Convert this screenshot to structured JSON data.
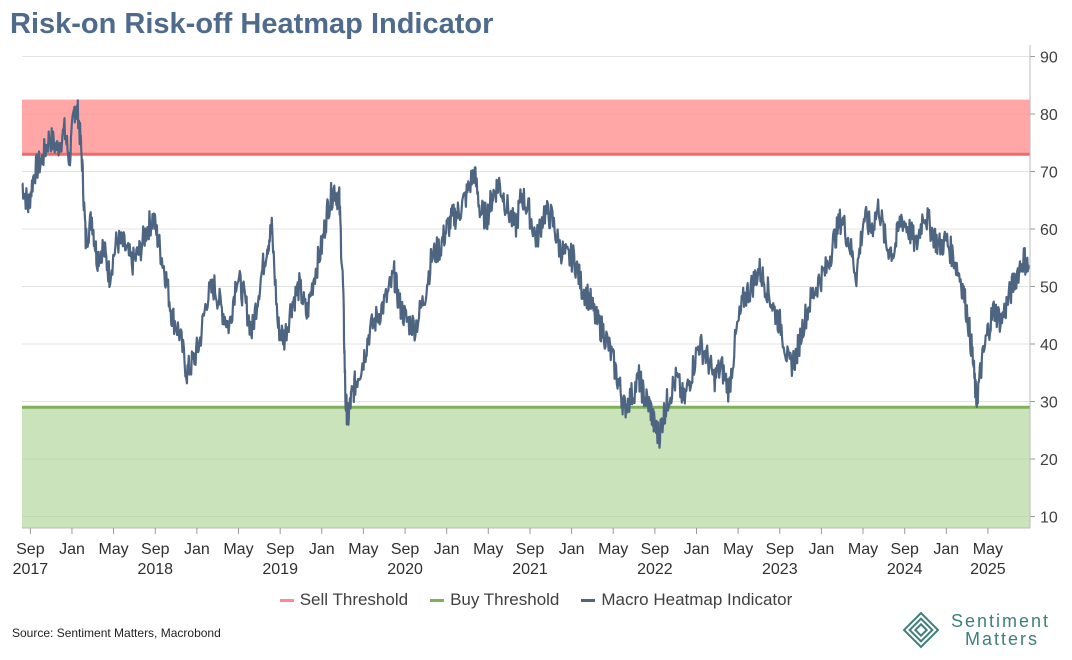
{
  "chart_data": {
    "type": "line",
    "title": "Risk-on Risk-off Heatmap Indicator",
    "ylim": [
      8,
      92
    ],
    "yticks": [
      10,
      20,
      30,
      40,
      50,
      60,
      70,
      80,
      90
    ],
    "xlim": [
      2017.6,
      2025.67
    ],
    "xticks": [
      {
        "t": 2017.667,
        "label": "Sep",
        "year": "2017"
      },
      {
        "t": 2018.0,
        "label": "Jan"
      },
      {
        "t": 2018.333,
        "label": "May"
      },
      {
        "t": 2018.667,
        "label": "Sep",
        "year": "2018"
      },
      {
        "t": 2019.0,
        "label": "Jan"
      },
      {
        "t": 2019.333,
        "label": "May"
      },
      {
        "t": 2019.667,
        "label": "Sep",
        "year": "2019"
      },
      {
        "t": 2020.0,
        "label": "Jan"
      },
      {
        "t": 2020.333,
        "label": "May"
      },
      {
        "t": 2020.667,
        "label": "Sep",
        "year": "2020"
      },
      {
        "t": 2021.0,
        "label": "Jan"
      },
      {
        "t": 2021.333,
        "label": "May"
      },
      {
        "t": 2021.667,
        "label": "Sep",
        "year": "2021"
      },
      {
        "t": 2022.0,
        "label": "Jan"
      },
      {
        "t": 2022.333,
        "label": "May"
      },
      {
        "t": 2022.667,
        "label": "Sep",
        "year": "2022"
      },
      {
        "t": 2023.0,
        "label": "Jan"
      },
      {
        "t": 2023.333,
        "label": "May"
      },
      {
        "t": 2023.667,
        "label": "Sep",
        "year": "2023"
      },
      {
        "t": 2024.0,
        "label": "Jan"
      },
      {
        "t": 2024.333,
        "label": "May"
      },
      {
        "t": 2024.667,
        "label": "Sep",
        "year": "2024"
      },
      {
        "t": 2025.0,
        "label": "Jan"
      },
      {
        "t": 2025.333,
        "label": "May",
        "year": "2025"
      }
    ],
    "series": [
      {
        "name": "Sell Threshold",
        "kind": "band",
        "range": [
          73,
          82.5
        ],
        "color": "#ff8a8a"
      },
      {
        "name": "Buy Threshold",
        "kind": "band",
        "range": [
          8,
          29
        ],
        "color": "#a8d08d"
      },
      {
        "name": "Macro Heatmap Indicator",
        "kind": "line",
        "color": "#4e6582",
        "points": [
          [
            2017.6,
            68
          ],
          [
            2017.65,
            64
          ],
          [
            2017.7,
            70
          ],
          [
            2017.76,
            72
          ],
          [
            2017.82,
            76
          ],
          [
            2017.88,
            74
          ],
          [
            2017.94,
            77
          ],
          [
            2017.98,
            72
          ],
          [
            2018.02,
            81
          ],
          [
            2018.05,
            80
          ],
          [
            2018.08,
            72
          ],
          [
            2018.11,
            58
          ],
          [
            2018.16,
            62
          ],
          [
            2018.2,
            55
          ],
          [
            2018.25,
            57
          ],
          [
            2018.3,
            52
          ],
          [
            2018.36,
            58
          ],
          [
            2018.42,
            57
          ],
          [
            2018.48,
            54
          ],
          [
            2018.54,
            56
          ],
          [
            2018.6,
            60
          ],
          [
            2018.65,
            62
          ],
          [
            2018.7,
            57
          ],
          [
            2018.75,
            52
          ],
          [
            2018.8,
            45
          ],
          [
            2018.86,
            42
          ],
          [
            2018.92,
            35
          ],
          [
            2018.97,
            37
          ],
          [
            2019.02,
            40
          ],
          [
            2019.08,
            48
          ],
          [
            2019.14,
            50
          ],
          [
            2019.2,
            46
          ],
          [
            2019.26,
            43
          ],
          [
            2019.32,
            52
          ],
          [
            2019.38,
            48
          ],
          [
            2019.44,
            42
          ],
          [
            2019.5,
            50
          ],
          [
            2019.56,
            57
          ],
          [
            2019.6,
            60
          ],
          [
            2019.65,
            43
          ],
          [
            2019.7,
            41
          ],
          [
            2019.76,
            47
          ],
          [
            2019.82,
            50
          ],
          [
            2019.88,
            45
          ],
          [
            2019.94,
            52
          ],
          [
            2020.0,
            57
          ],
          [
            2020.05,
            64
          ],
          [
            2020.1,
            67
          ],
          [
            2020.14,
            65
          ],
          [
            2020.17,
            50
          ],
          [
            2020.19,
            30
          ],
          [
            2020.21,
            27
          ],
          [
            2020.24,
            31
          ],
          [
            2020.28,
            34
          ],
          [
            2020.33,
            37
          ],
          [
            2020.38,
            42
          ],
          [
            2020.45,
            45
          ],
          [
            2020.52,
            48
          ],
          [
            2020.58,
            52
          ],
          [
            2020.62,
            47
          ],
          [
            2020.68,
            44
          ],
          [
            2020.75,
            43
          ],
          [
            2020.82,
            48
          ],
          [
            2020.88,
            55
          ],
          [
            2020.95,
            57
          ],
          [
            2021.0,
            60
          ],
          [
            2021.05,
            62
          ],
          [
            2021.1,
            63
          ],
          [
            2021.16,
            66
          ],
          [
            2021.22,
            70
          ],
          [
            2021.27,
            63
          ],
          [
            2021.32,
            62
          ],
          [
            2021.37,
            66
          ],
          [
            2021.42,
            68
          ],
          [
            2021.48,
            64
          ],
          [
            2021.55,
            60
          ],
          [
            2021.6,
            66
          ],
          [
            2021.66,
            63
          ],
          [
            2021.72,
            58
          ],
          [
            2021.78,
            63
          ],
          [
            2021.84,
            62
          ],
          [
            2021.9,
            57
          ],
          [
            2021.96,
            55
          ],
          [
            2022.02,
            55
          ],
          [
            2022.08,
            50
          ],
          [
            2022.14,
            48
          ],
          [
            2022.2,
            44
          ],
          [
            2022.26,
            42
          ],
          [
            2022.32,
            38
          ],
          [
            2022.38,
            33
          ],
          [
            2022.42,
            29
          ],
          [
            2022.48,
            31
          ],
          [
            2022.54,
            34
          ],
          [
            2022.58,
            31
          ],
          [
            2022.63,
            29
          ],
          [
            2022.66,
            26
          ],
          [
            2022.7,
            24
          ],
          [
            2022.74,
            28
          ],
          [
            2022.78,
            31
          ],
          [
            2022.84,
            34
          ],
          [
            2022.9,
            30
          ],
          [
            2022.96,
            35
          ],
          [
            2023.02,
            40
          ],
          [
            2023.08,
            38
          ],
          [
            2023.14,
            34
          ],
          [
            2023.2,
            36
          ],
          [
            2023.26,
            32
          ],
          [
            2023.32,
            42
          ],
          [
            2023.38,
            48
          ],
          [
            2023.44,
            50
          ],
          [
            2023.5,
            53
          ],
          [
            2023.56,
            50
          ],
          [
            2023.62,
            46
          ],
          [
            2023.68,
            43
          ],
          [
            2023.74,
            36
          ],
          [
            2023.8,
            38
          ],
          [
            2023.86,
            44
          ],
          [
            2023.92,
            48
          ],
          [
            2023.98,
            51
          ],
          [
            2024.04,
            53
          ],
          [
            2024.1,
            58
          ],
          [
            2024.16,
            62
          ],
          [
            2024.22,
            58
          ],
          [
            2024.28,
            52
          ],
          [
            2024.34,
            62
          ],
          [
            2024.4,
            60
          ],
          [
            2024.46,
            64
          ],
          [
            2024.52,
            57
          ],
          [
            2024.58,
            56
          ],
          [
            2024.64,
            62
          ],
          [
            2024.7,
            60
          ],
          [
            2024.76,
            57
          ],
          [
            2024.82,
            63
          ],
          [
            2024.88,
            60
          ],
          [
            2024.94,
            57
          ],
          [
            2025.0,
            58
          ],
          [
            2025.06,
            55
          ],
          [
            2025.12,
            51
          ],
          [
            2025.17,
            45
          ],
          [
            2025.21,
            38
          ],
          [
            2025.24,
            30
          ],
          [
            2025.28,
            36
          ],
          [
            2025.33,
            42
          ],
          [
            2025.38,
            46
          ],
          [
            2025.44,
            44
          ],
          [
            2025.5,
            48
          ],
          [
            2025.56,
            52
          ],
          [
            2025.62,
            55
          ],
          [
            2025.66,
            53
          ]
        ]
      }
    ],
    "legend": [
      {
        "label": "Sell Threshold",
        "color": "#ff8a8a"
      },
      {
        "label": "Buy Threshold",
        "color": "#7fb05a"
      },
      {
        "label": "Macro Heatmap Indicator",
        "color": "#4e6582"
      }
    ]
  },
  "footer": {
    "source": "Source: Sentiment Matters, Macrobond",
    "logo_line1": "Sentiment",
    "logo_line2": "Matters",
    "logo_color": "#3e7f7a"
  }
}
